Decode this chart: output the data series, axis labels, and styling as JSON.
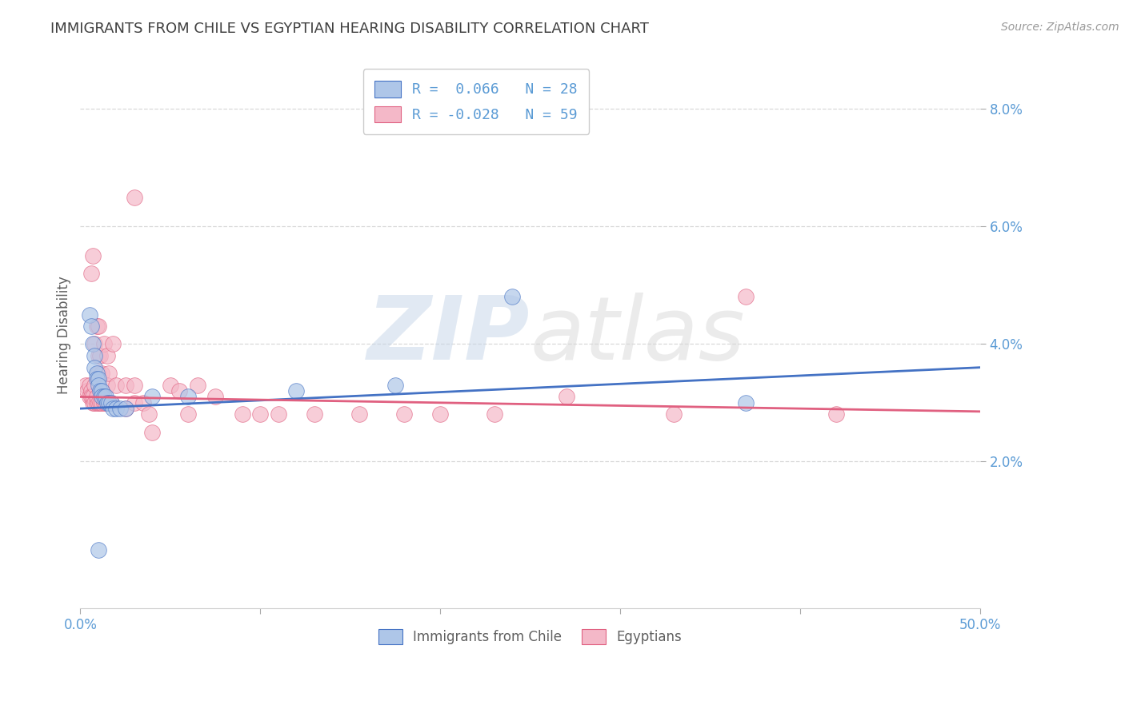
{
  "title": "IMMIGRANTS FROM CHILE VS EGYPTIAN HEARING DISABILITY CORRELATION CHART",
  "source": "Source: ZipAtlas.com",
  "ylabel": "Hearing Disability",
  "legend_items": [
    {
      "label": "Immigrants from Chile",
      "color": "#aec6e8",
      "R": 0.066,
      "N": 28
    },
    {
      "label": "Egyptians",
      "color": "#f4b8c8",
      "R": -0.028,
      "N": 59
    }
  ],
  "xlim": [
    0.0,
    0.5
  ],
  "ylim": [
    -0.005,
    0.088
  ],
  "yticks": [
    0.02,
    0.04,
    0.06,
    0.08
  ],
  "ytick_labels": [
    "2.0%",
    "4.0%",
    "6.0%",
    "8.0%"
  ],
  "xticks": [
    0.0,
    0.1,
    0.2,
    0.3,
    0.4,
    0.5
  ],
  "xtick_labels": [
    "0.0%",
    "",
    "",
    "",
    "",
    "50.0%"
  ],
  "watermark_zip": "ZIP",
  "watermark_atlas": "atlas",
  "blue_scatter": [
    [
      0.005,
      0.045
    ],
    [
      0.006,
      0.043
    ],
    [
      0.007,
      0.04
    ],
    [
      0.008,
      0.038
    ],
    [
      0.008,
      0.036
    ],
    [
      0.009,
      0.035
    ],
    [
      0.009,
      0.034
    ],
    [
      0.01,
      0.034
    ],
    [
      0.01,
      0.033
    ],
    [
      0.011,
      0.032
    ],
    [
      0.012,
      0.032
    ],
    [
      0.012,
      0.031
    ],
    [
      0.013,
      0.031
    ],
    [
      0.014,
      0.031
    ],
    [
      0.015,
      0.03
    ],
    [
      0.016,
      0.03
    ],
    [
      0.017,
      0.03
    ],
    [
      0.018,
      0.029
    ],
    [
      0.02,
      0.029
    ],
    [
      0.022,
      0.029
    ],
    [
      0.025,
      0.029
    ],
    [
      0.04,
      0.031
    ],
    [
      0.06,
      0.031
    ],
    [
      0.12,
      0.032
    ],
    [
      0.175,
      0.033
    ],
    [
      0.24,
      0.048
    ],
    [
      0.37,
      0.03
    ],
    [
      0.01,
      0.005
    ]
  ],
  "pink_scatter": [
    [
      0.003,
      0.033
    ],
    [
      0.004,
      0.032
    ],
    [
      0.005,
      0.033
    ],
    [
      0.005,
      0.031
    ],
    [
      0.006,
      0.032
    ],
    [
      0.006,
      0.031
    ],
    [
      0.006,
      0.052
    ],
    [
      0.007,
      0.03
    ],
    [
      0.007,
      0.031
    ],
    [
      0.007,
      0.055
    ],
    [
      0.008,
      0.03
    ],
    [
      0.008,
      0.033
    ],
    [
      0.008,
      0.04
    ],
    [
      0.009,
      0.03
    ],
    [
      0.009,
      0.031
    ],
    [
      0.009,
      0.043
    ],
    [
      0.01,
      0.03
    ],
    [
      0.01,
      0.038
    ],
    [
      0.01,
      0.035
    ],
    [
      0.01,
      0.043
    ],
    [
      0.011,
      0.03
    ],
    [
      0.011,
      0.038
    ],
    [
      0.012,
      0.03
    ],
    [
      0.012,
      0.035
    ],
    [
      0.013,
      0.03
    ],
    [
      0.013,
      0.04
    ],
    [
      0.014,
      0.03
    ],
    [
      0.015,
      0.033
    ],
    [
      0.015,
      0.038
    ],
    [
      0.016,
      0.03
    ],
    [
      0.016,
      0.035
    ],
    [
      0.017,
      0.03
    ],
    [
      0.018,
      0.04
    ],
    [
      0.02,
      0.033
    ],
    [
      0.025,
      0.029
    ],
    [
      0.025,
      0.033
    ],
    [
      0.03,
      0.03
    ],
    [
      0.03,
      0.033
    ],
    [
      0.035,
      0.03
    ],
    [
      0.038,
      0.028
    ],
    [
      0.04,
      0.025
    ],
    [
      0.05,
      0.033
    ],
    [
      0.055,
      0.032
    ],
    [
      0.06,
      0.028
    ],
    [
      0.065,
      0.033
    ],
    [
      0.075,
      0.031
    ],
    [
      0.09,
      0.028
    ],
    [
      0.1,
      0.028
    ],
    [
      0.11,
      0.028
    ],
    [
      0.13,
      0.028
    ],
    [
      0.155,
      0.028
    ],
    [
      0.18,
      0.028
    ],
    [
      0.2,
      0.028
    ],
    [
      0.23,
      0.028
    ],
    [
      0.27,
      0.031
    ],
    [
      0.33,
      0.028
    ],
    [
      0.37,
      0.048
    ],
    [
      0.03,
      0.065
    ],
    [
      0.42,
      0.028
    ]
  ],
  "blue_line_color": "#4472c4",
  "pink_line_color": "#e06080",
  "blue_line": [
    [
      0.0,
      0.029
    ],
    [
      0.5,
      0.036
    ]
  ],
  "pink_line": [
    [
      0.0,
      0.031
    ],
    [
      0.5,
      0.0285
    ]
  ],
  "background_color": "#ffffff",
  "grid_color": "#d8d8d8",
  "title_color": "#404040",
  "axis_label_color": "#606060",
  "tick_color": "#5b9bd5"
}
